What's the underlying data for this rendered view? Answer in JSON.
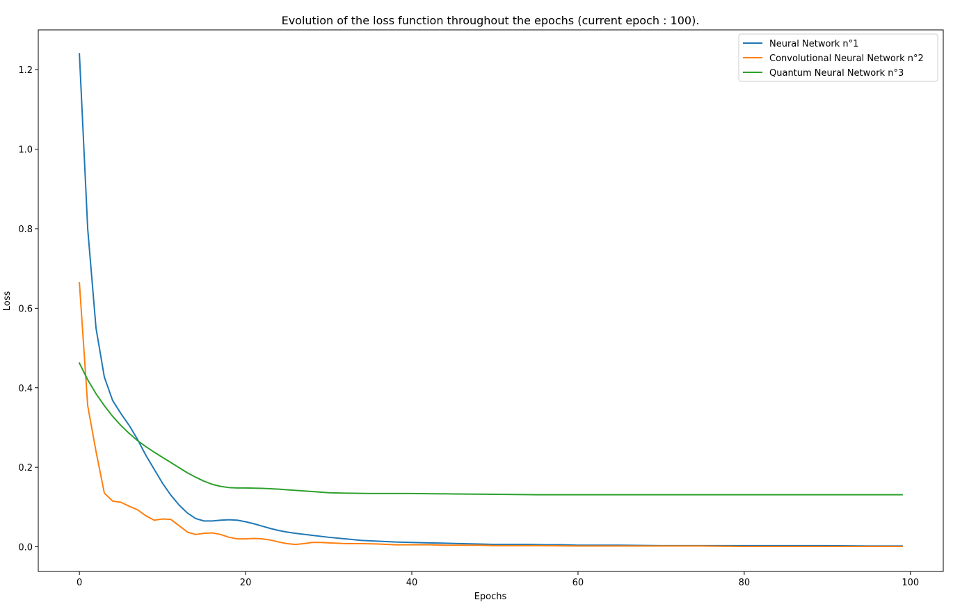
{
  "chart_data": {
    "type": "line",
    "title": "Evolution of the loss function throughout the epochs (current epoch : 100).",
    "xlabel": "Epochs",
    "ylabel": "Loss",
    "xlim": [
      -4.95,
      103.95
    ],
    "ylim": [
      -0.062,
      1.3
    ],
    "xticks": [
      0,
      20,
      40,
      60,
      80,
      100
    ],
    "yticks": [
      0.0,
      0.2,
      0.4,
      0.6,
      0.8,
      1.0,
      1.2
    ],
    "xtick_labels": [
      "0",
      "20",
      "40",
      "60",
      "80",
      "100"
    ],
    "ytick_labels": [
      "0.0",
      "0.2",
      "0.4",
      "0.6",
      "0.8",
      "1.0",
      "1.2"
    ],
    "grid": false,
    "legend_position": "top-right",
    "series": [
      {
        "name": "Neural Network n°1",
        "color": "#1f77b4",
        "x": [
          0,
          1,
          2,
          3,
          4,
          5,
          6,
          7,
          8,
          9,
          10,
          11,
          12,
          13,
          14,
          15,
          16,
          17,
          18,
          19,
          20,
          21,
          22,
          23,
          24,
          25,
          26,
          28,
          30,
          32,
          34,
          36,
          38,
          40,
          42,
          44,
          46,
          48,
          50,
          52,
          54,
          56,
          58,
          60,
          65,
          70,
          75,
          80,
          85,
          90,
          95,
          99
        ],
        "y": [
          1.24,
          0.8,
          0.55,
          0.427,
          0.368,
          0.335,
          0.305,
          0.27,
          0.23,
          0.195,
          0.16,
          0.13,
          0.105,
          0.085,
          0.071,
          0.065,
          0.065,
          0.067,
          0.068,
          0.067,
          0.063,
          0.058,
          0.052,
          0.046,
          0.041,
          0.037,
          0.034,
          0.029,
          0.024,
          0.02,
          0.016,
          0.014,
          0.012,
          0.011,
          0.01,
          0.009,
          0.008,
          0.007,
          0.006,
          0.006,
          0.006,
          0.005,
          0.005,
          0.004,
          0.004,
          0.003,
          0.003,
          0.003,
          0.003,
          0.003,
          0.002,
          0.002
        ]
      },
      {
        "name": "Convolutional Neural Network n°2",
        "color": "#ff7f0e",
        "x": [
          0,
          1,
          2,
          3,
          4,
          5,
          6,
          7,
          8,
          9,
          10,
          11,
          12,
          13,
          14,
          15,
          16,
          17,
          18,
          19,
          20,
          21,
          22,
          23,
          24,
          25,
          26,
          27,
          28,
          29,
          30,
          31,
          32,
          34,
          36,
          38,
          40,
          42,
          44,
          46,
          48,
          50,
          55,
          60,
          65,
          70,
          75,
          80,
          85,
          90,
          95,
          99
        ],
        "y": [
          0.664,
          0.355,
          0.24,
          0.135,
          0.115,
          0.112,
          0.102,
          0.093,
          0.078,
          0.067,
          0.07,
          0.069,
          0.053,
          0.037,
          0.031,
          0.034,
          0.035,
          0.031,
          0.024,
          0.02,
          0.02,
          0.021,
          0.02,
          0.017,
          0.012,
          0.008,
          0.006,
          0.008,
          0.011,
          0.011,
          0.01,
          0.009,
          0.008,
          0.008,
          0.007,
          0.005,
          0.005,
          0.005,
          0.004,
          0.004,
          0.004,
          0.003,
          0.003,
          0.002,
          0.002,
          0.002,
          0.002,
          0.001,
          0.001,
          0.001,
          0.001,
          0.001
        ]
      },
      {
        "name": "Quantum Neural Network n°3",
        "color": "#2ca02c",
        "x": [
          0,
          1,
          2,
          3,
          4,
          5,
          6,
          7,
          8,
          9,
          10,
          11,
          12,
          13,
          14,
          15,
          16,
          17,
          18,
          19,
          20,
          22,
          24,
          26,
          28,
          30,
          32,
          35,
          40,
          45,
          50,
          55,
          60,
          65,
          70,
          75,
          80,
          85,
          90,
          95,
          99
        ],
        "y": [
          0.462,
          0.42,
          0.385,
          0.355,
          0.328,
          0.305,
          0.285,
          0.267,
          0.252,
          0.238,
          0.225,
          0.212,
          0.199,
          0.186,
          0.175,
          0.165,
          0.157,
          0.152,
          0.149,
          0.148,
          0.148,
          0.147,
          0.145,
          0.142,
          0.139,
          0.136,
          0.135,
          0.134,
          0.134,
          0.133,
          0.132,
          0.131,
          0.131,
          0.131,
          0.131,
          0.131,
          0.131,
          0.131,
          0.131,
          0.131,
          0.131
        ]
      }
    ]
  }
}
